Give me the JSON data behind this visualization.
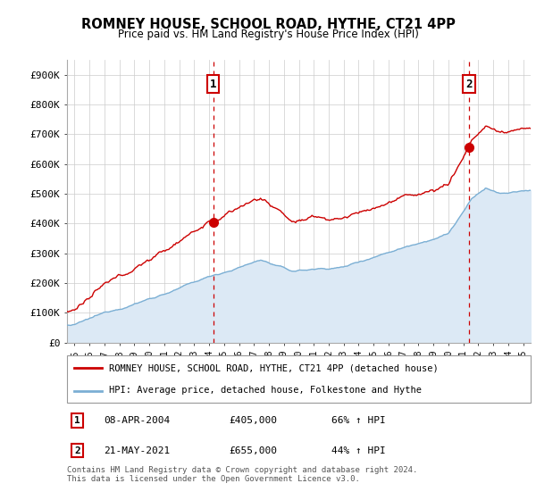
{
  "title_line1": "ROMNEY HOUSE, SCHOOL ROAD, HYTHE, CT21 4PP",
  "title_line2": "Price paid vs. HM Land Registry's House Price Index (HPI)",
  "ylabel_ticks": [
    "£0",
    "£100K",
    "£200K",
    "£300K",
    "£400K",
    "£500K",
    "£600K",
    "£700K",
    "£800K",
    "£900K"
  ],
  "ytick_values": [
    0,
    100000,
    200000,
    300000,
    400000,
    500000,
    600000,
    700000,
    800000,
    900000
  ],
  "ylim": [
    0,
    950000
  ],
  "xlim_start": 1994.5,
  "xlim_end": 2025.5,
  "xtick_years": [
    1995,
    1996,
    1997,
    1998,
    1999,
    2000,
    2001,
    2002,
    2003,
    2004,
    2005,
    2006,
    2007,
    2008,
    2009,
    2010,
    2011,
    2012,
    2013,
    2014,
    2015,
    2016,
    2017,
    2018,
    2019,
    2020,
    2021,
    2022,
    2023,
    2024,
    2025
  ],
  "sale1_x": 2004.27,
  "sale1_y": 405000,
  "sale1_label": "1",
  "sale2_x": 2021.38,
  "sale2_y": 655000,
  "sale2_label": "2",
  "sale_color": "#cc0000",
  "hpi_color": "#7bafd4",
  "hpi_fill_color": "#dce9f5",
  "vline_color": "#cc0000",
  "vline_style": "--",
  "legend_label_red": "ROMNEY HOUSE, SCHOOL ROAD, HYTHE, CT21 4PP (detached house)",
  "legend_label_blue": "HPI: Average price, detached house, Folkestone and Hythe",
  "table_rows": [
    {
      "num": "1",
      "date": "08-APR-2004",
      "price": "£405,000",
      "hpi": "66% ↑ HPI"
    },
    {
      "num": "2",
      "date": "21-MAY-2021",
      "price": "£655,000",
      "hpi": "44% ↑ HPI"
    }
  ],
  "footnote": "Contains HM Land Registry data © Crown copyright and database right 2024.\nThis data is licensed under the Open Government Licence v3.0.",
  "bg_color": "#ffffff",
  "grid_color": "#cccccc"
}
